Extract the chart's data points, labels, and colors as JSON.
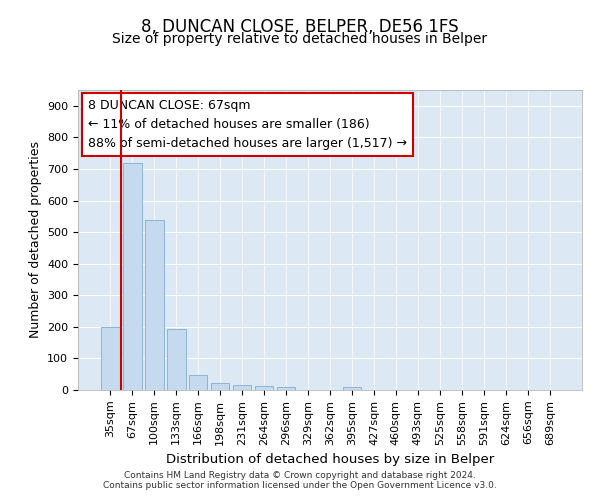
{
  "title": "8, DUNCAN CLOSE, BELPER, DE56 1FS",
  "subtitle": "Size of property relative to detached houses in Belper",
  "xlabel": "Distribution of detached houses by size in Belper",
  "ylabel": "Number of detached properties",
  "categories": [
    "35sqm",
    "67sqm",
    "100sqm",
    "133sqm",
    "166sqm",
    "198sqm",
    "231sqm",
    "264sqm",
    "296sqm",
    "329sqm",
    "362sqm",
    "395sqm",
    "427sqm",
    "460sqm",
    "493sqm",
    "525sqm",
    "558sqm",
    "591sqm",
    "624sqm",
    "656sqm",
    "689sqm"
  ],
  "values": [
    200,
    718,
    537,
    193,
    46,
    21,
    16,
    12,
    8,
    0,
    0,
    10,
    0,
    0,
    0,
    0,
    0,
    0,
    0,
    0,
    0
  ],
  "bar_color": "#c5d9ef",
  "bar_edge_color": "#8ab4d8",
  "highlight_index": 1,
  "highlight_line_color": "#cc0000",
  "annotation_text": "8 DUNCAN CLOSE: 67sqm\n← 11% of detached houses are smaller (186)\n88% of semi-detached houses are larger (1,517) →",
  "annotation_box_color": "#ffffff",
  "annotation_box_edge_color": "#cc0000",
  "ylim": [
    0,
    950
  ],
  "yticks": [
    0,
    100,
    200,
    300,
    400,
    500,
    600,
    700,
    800,
    900
  ],
  "background_color": "#dce9f5",
  "plot_bg_color": "#dce9f5",
  "footer_text": "Contains HM Land Registry data © Crown copyright and database right 2024.\nContains public sector information licensed under the Open Government Licence v3.0.",
  "title_fontsize": 12,
  "subtitle_fontsize": 10,
  "xlabel_fontsize": 9.5,
  "ylabel_fontsize": 9,
  "tick_fontsize": 8,
  "annotation_fontsize": 9
}
